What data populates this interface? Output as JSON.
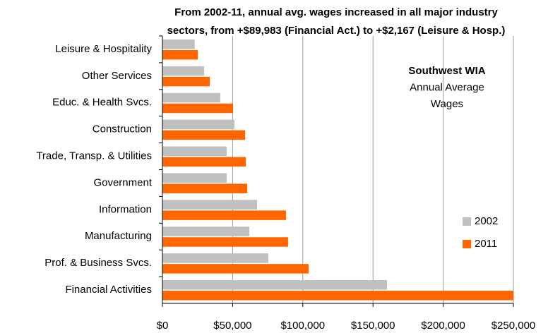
{
  "chart_data": {
    "type": "hbar",
    "title": [
      "From 2002-11, annual avg. wages increased in all major industry",
      "sectors, from +$89,983 (Financial Act.) to +$2,167 (Leisure & Hosp.)"
    ],
    "annotation": [
      "Southwest WIA",
      "Annual Average",
      "Wages"
    ],
    "categories": [
      "Leisure & Hospitality",
      "Other Services",
      "Educ. & Health Svcs.",
      "Construction",
      "Trade, Transp. & Utilities",
      "Government",
      "Information",
      "Manufacturing",
      "Prof. & Business Svcs.",
      "Financial Activities"
    ],
    "series": [
      {
        "name": "2002",
        "color": "#c0c0c0",
        "values": [
          23000,
          29700,
          41200,
          51300,
          45800,
          45800,
          67400,
          61900,
          75500,
          160000
        ]
      },
      {
        "name": "2011",
        "color": "#ff6600",
        "values": [
          25200,
          33700,
          50300,
          58900,
          59400,
          60400,
          88000,
          89500,
          104100,
          250000
        ]
      }
    ],
    "xlim": [
      0,
      250000
    ],
    "xticks": [
      {
        "value": 0,
        "label": "$0"
      },
      {
        "value": 50000,
        "label": "$50,000"
      },
      {
        "value": 100000,
        "label": "$100,000"
      },
      {
        "value": 150000,
        "label": "$150,000"
      },
      {
        "value": 200000,
        "label": "$200,000"
      },
      {
        "value": 250000,
        "label": "$250,000"
      }
    ],
    "grid": true,
    "legend": "right"
  }
}
